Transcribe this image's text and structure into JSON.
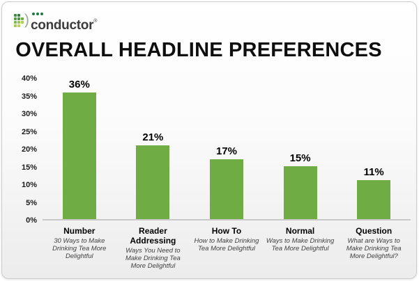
{
  "logo": {
    "brand": "conductor",
    "registered": "®"
  },
  "title": "OVERALL HEADLINE PREFERENCES",
  "colors": {
    "bar": "#6FAD44",
    "axis_line": "#c9c9c9",
    "logo_text": "#3b3b3b",
    "logo_dot": "#1e7a40",
    "logo_grid": [
      "#3a8f3c",
      "#2f8338",
      "#00000000",
      "#4f9e3e",
      "#44963c",
      "#6fae44",
      "#7db84a",
      "#94c44a",
      "#aed04a",
      "#a3cb4c",
      "#bcd74f",
      "#00000000"
    ]
  },
  "chart_data": {
    "type": "bar",
    "title": "OVERALL HEADLINE PREFERENCES",
    "categories": [
      "Number",
      "Reader Addressing",
      "How To",
      "Normal",
      "Question"
    ],
    "subtitles": [
      "30 Ways to Make Drinking Tea More Delightful",
      "Ways You Need to Make Drinking Tea More Delightful",
      "How to Make Drinking Tea More Delightful",
      "Ways to Make Drinking Tea More Delightful",
      "What are Ways to Make Drinking Tea More Delightful?"
    ],
    "values": [
      36,
      21,
      17,
      15,
      11
    ],
    "value_labels": [
      "36%",
      "21%",
      "17%",
      "15%",
      "11%"
    ],
    "xlabel": "",
    "ylabel": "",
    "ylim": [
      0,
      40
    ],
    "yticks_display": [
      "40%",
      "35%",
      "30%",
      "25%",
      "20%",
      "15%",
      "10%",
      "5%",
      "0%"
    ],
    "grid": false,
    "legend": false
  }
}
